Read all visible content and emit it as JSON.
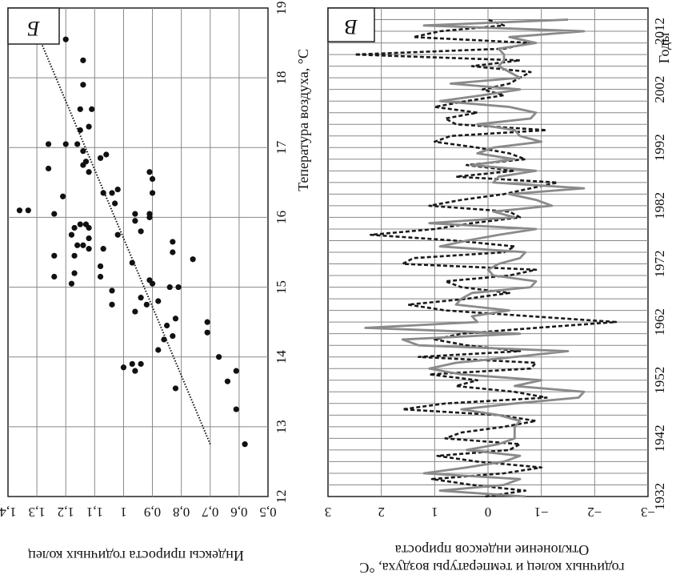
{
  "chart_data": [
    {
      "panel": "Б",
      "type": "scatter",
      "xlabel": "Индексы прироста годичных колец",
      "ylabel": "Тепература воздуха, °С",
      "xlim": [
        0.5,
        1.4
      ],
      "ylim": [
        12,
        19
      ],
      "x_ticks": [
        "1,4",
        "1,3",
        "1,2",
        "1,1",
        "1",
        "0,9",
        "0,8",
        "0,7",
        "0,6",
        "0,5"
      ],
      "y_ticks": [
        "12",
        "13",
        "14",
        "15",
        "16",
        "17",
        "18",
        "19"
      ],
      "grid": true,
      "points": [
        {
          "x": 1.2,
          "y": 18.55
        },
        {
          "x": 1.14,
          "y": 18.25
        },
        {
          "x": 1.14,
          "y": 17.9
        },
        {
          "x": 1.11,
          "y": 17.55
        },
        {
          "x": 1.15,
          "y": 17.55
        },
        {
          "x": 1.15,
          "y": 17.25
        },
        {
          "x": 1.12,
          "y": 17.3
        },
        {
          "x": 1.16,
          "y": 17.05
        },
        {
          "x": 1.2,
          "y": 17.05
        },
        {
          "x": 1.26,
          "y": 17.05
        },
        {
          "x": 1.14,
          "y": 16.95
        },
        {
          "x": 1.06,
          "y": 16.9
        },
        {
          "x": 1.08,
          "y": 16.85
        },
        {
          "x": 1.14,
          "y": 16.75
        },
        {
          "x": 1.13,
          "y": 16.8
        },
        {
          "x": 1.26,
          "y": 16.7
        },
        {
          "x": 1.12,
          "y": 16.65
        },
        {
          "x": 0.91,
          "y": 16.65
        },
        {
          "x": 0.9,
          "y": 16.55
        },
        {
          "x": 1.02,
          "y": 16.4
        },
        {
          "x": 1.04,
          "y": 16.35
        },
        {
          "x": 1.07,
          "y": 16.35
        },
        {
          "x": 0.9,
          "y": 16.35
        },
        {
          "x": 1.21,
          "y": 16.3
        },
        {
          "x": 1.03,
          "y": 16.2
        },
        {
          "x": 1.36,
          "y": 16.1
        },
        {
          "x": 1.33,
          "y": 16.1
        },
        {
          "x": 0.96,
          "y": 16.05
        },
        {
          "x": 1.24,
          "y": 16.05
        },
        {
          "x": 0.91,
          "y": 16.05
        },
        {
          "x": 0.91,
          "y": 16.0
        },
        {
          "x": 0.96,
          "y": 15.95
        },
        {
          "x": 1.15,
          "y": 15.9
        },
        {
          "x": 1.13,
          "y": 15.9
        },
        {
          "x": 1.12,
          "y": 15.85
        },
        {
          "x": 1.17,
          "y": 15.85
        },
        {
          "x": 0.94,
          "y": 15.8
        },
        {
          "x": 1.02,
          "y": 15.75
        },
        {
          "x": 1.18,
          "y": 15.75
        },
        {
          "x": 1.12,
          "y": 15.7
        },
        {
          "x": 0.83,
          "y": 15.65
        },
        {
          "x": 1.14,
          "y": 15.6
        },
        {
          "x": 1.16,
          "y": 15.6
        },
        {
          "x": 1.07,
          "y": 15.55
        },
        {
          "x": 1.12,
          "y": 15.55
        },
        {
          "x": 0.83,
          "y": 15.5
        },
        {
          "x": 1.24,
          "y": 15.45
        },
        {
          "x": 1.17,
          "y": 15.45
        },
        {
          "x": 0.76,
          "y": 15.4
        },
        {
          "x": 0.97,
          "y": 15.35
        },
        {
          "x": 1.08,
          "y": 15.3
        },
        {
          "x": 1.17,
          "y": 15.2
        },
        {
          "x": 1.08,
          "y": 15.15
        },
        {
          "x": 1.24,
          "y": 15.15
        },
        {
          "x": 0.91,
          "y": 15.1
        },
        {
          "x": 1.18,
          "y": 15.05
        },
        {
          "x": 0.9,
          "y": 15.05
        },
        {
          "x": 0.84,
          "y": 15.0
        },
        {
          "x": 0.81,
          "y": 15.0
        },
        {
          "x": 1.04,
          "y": 14.95
        },
        {
          "x": 0.94,
          "y": 14.85
        },
        {
          "x": 0.92,
          "y": 14.75
        },
        {
          "x": 1.04,
          "y": 14.75
        },
        {
          "x": 0.88,
          "y": 14.8
        },
        {
          "x": 0.96,
          "y": 14.65
        },
        {
          "x": 0.82,
          "y": 14.55
        },
        {
          "x": 0.71,
          "y": 14.5
        },
        {
          "x": 0.85,
          "y": 14.45
        },
        {
          "x": 0.71,
          "y": 14.35
        },
        {
          "x": 0.83,
          "y": 14.3
        },
        {
          "x": 0.86,
          "y": 14.25
        },
        {
          "x": 0.88,
          "y": 14.1
        },
        {
          "x": 0.67,
          "y": 14.0
        },
        {
          "x": 0.94,
          "y": 13.9
        },
        {
          "x": 0.97,
          "y": 13.9
        },
        {
          "x": 1.0,
          "y": 13.85
        },
        {
          "x": 0.96,
          "y": 13.8
        },
        {
          "x": 0.61,
          "y": 13.8
        },
        {
          "x": 0.64,
          "y": 13.65
        },
        {
          "x": 0.82,
          "y": 13.55
        },
        {
          "x": 0.61,
          "y": 13.25
        },
        {
          "x": 0.58,
          "y": 12.75
        }
      ],
      "trendline": {
        "from": {
          "x": 1.3,
          "y": 18.65
        },
        "to": {
          "x": 0.7,
          "y": 12.75
        },
        "style": "dotted"
      }
    },
    {
      "panel": "В",
      "type": "line",
      "xlabel": "Годы",
      "ylabel": "Отклонение индексов прироста годичных колец и температуры воздуха, °С",
      "xlim": [
        1932,
        2016
      ],
      "ylim": [
        -3,
        3
      ],
      "x_ticks": [
        "1932",
        "1942",
        "1952",
        "1962",
        "1972",
        "1982",
        "1992",
        "2002",
        "2012"
      ],
      "y_ticks": [
        "3",
        "2",
        "1",
        "0",
        "−1",
        "−2",
        "−3"
      ],
      "grid": true,
      "years": [
        1932,
        1933,
        1934,
        1935,
        1936,
        1937,
        1938,
        1939,
        1940,
        1941,
        1942,
        1943,
        1944,
        1945,
        1946,
        1947,
        1948,
        1949,
        1950,
        1951,
        1952,
        1953,
        1954,
        1955,
        1956,
        1957,
        1958,
        1959,
        1960,
        1961,
        1962,
        1963,
        1964,
        1965,
        1966,
        1967,
        1968,
        1969,
        1970,
        1971,
        1972,
        1973,
        1974,
        1975,
        1976,
        1977,
        1978,
        1979,
        1980,
        1981,
        1982,
        1983,
        1984,
        1985,
        1986,
        1987,
        1988,
        1989,
        1990,
        1991,
        1992,
        1993,
        1994,
        1995,
        1996,
        1997,
        1998,
        1999,
        2000,
        2001,
        2002,
        2003,
        2004,
        2005,
        2006,
        2007,
        2008,
        2009,
        2010,
        2011,
        2012,
        2013,
        2014
      ],
      "series": [
        {
          "style": "dashed",
          "color": "#1a1a1a",
          "values": [
            0.05,
            -0.7,
            0.3,
            1.05,
            -0.3,
            -1.0,
            0.2,
            0.95,
            -0.4,
            -0.6,
            0.8,
            0.5,
            -0.3,
            -0.9,
            -0.2,
            1.6,
            0.8,
            -1.1,
            -0.5,
            0.6,
            0.2,
            1.1,
            -0.8,
            -0.9,
            1.3,
            -0.6,
            0.4,
            1.0,
            0.5,
            -0.9,
            -2.4,
            -0.8,
            0.8,
            1.5,
            0.4,
            -0.4,
            0.5,
            0.8,
            -0.4,
            -0.9,
            1.6,
            1.4,
            -0.3,
            -0.5,
            0.6,
            2.2,
            1.0,
            0.3,
            -0.6,
            -0.4,
            1.1,
            0.5,
            -0.3,
            -0.8,
            -1.3,
            0.6,
            -0.5,
            0.4,
            -0.7,
            -0.4,
            0.2,
            1.0,
            0.7,
            -1.1,
            0.6,
            0.8,
            0.2,
            1.0,
            0.4,
            -0.3,
            0.1,
            -0.4,
            -0.6,
            -0.8,
            0.3,
            -0.6,
            2.5,
            -0.3,
            -0.8,
            1.4,
            0.9,
            -0.3,
            0.0
          ]
        },
        {
          "style": "solid",
          "color": "#8a8a8a",
          "values": [
            -0.7,
            0.9,
            -0.3,
            -0.6,
            1.2,
            0.4,
            -0.3,
            -0.6,
            0.4,
            -0.2,
            -0.5,
            -0.5,
            -0.5,
            -0.6,
            -0.2,
            0.5,
            -0.5,
            -1.7,
            -1.8,
            -0.5,
            -1.0,
            0.5,
            1.1,
            0.6,
            -0.5,
            -1.5,
            1.3,
            1.6,
            -0.6,
            2.3,
            0.2,
            0.3,
            -0.4,
            0.6,
            0.5,
            0.3,
            -0.8,
            -0.9,
            -0.1,
            0.0,
            -0.2,
            -0.6,
            -0.7,
            0.9,
            0.4,
            -0.2,
            -0.9,
            1.1,
            -0.5,
            -0.1,
            -1.2,
            -0.9,
            -0.4,
            -1.8,
            -0.1,
            -0.2,
            -0.9,
            0.3,
            -0.5,
            0.2,
            -0.1,
            -1.0,
            -0.6,
            -0.5,
            0.2,
            -0.8,
            -0.9,
            -0.4,
            0.9,
            0.1,
            -0.6,
            0.7,
            -0.6,
            -0.4,
            -0.2,
            -0.3,
            -0.3,
            -0.2,
            -0.9,
            -0.4,
            -1.8,
            1.2,
            -1.5
          ]
        }
      ]
    }
  ],
  "panel_b": {
    "letter": "Б",
    "x_title": "Индексы прироста годичных колец",
    "y_title": "Тепература воздуха, °С"
  },
  "panel_v": {
    "letter": "В",
    "x_title": "Годы",
    "y_title_line1": "Отклонение индексов прироста",
    "y_title_line2": "годичных колец и температуры воздуха, °С"
  }
}
